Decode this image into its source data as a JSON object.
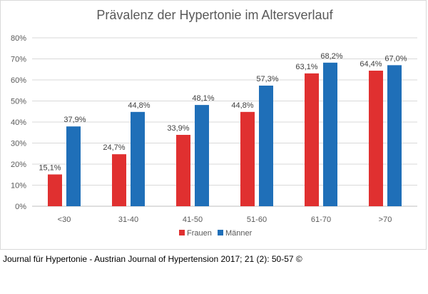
{
  "chart_data": {
    "type": "bar",
    "title": "Prävalenz der Hypertonie im Altersverlauf",
    "categories": [
      "<30",
      "31-40",
      "41-50",
      "51-60",
      "61-70",
      ">70"
    ],
    "series": [
      {
        "name": "Frauen",
        "color": "#e03030",
        "values": [
          15.1,
          24.7,
          33.9,
          44.8,
          63.1,
          64.4
        ],
        "labels": [
          "15,1%",
          "24,7%",
          "33,9%",
          "44,8%",
          "63,1%",
          "64,4%"
        ]
      },
      {
        "name": "Männer",
        "color": "#1f6fb8",
        "values": [
          37.9,
          44.8,
          48.1,
          57.3,
          68.2,
          67.0
        ],
        "labels": [
          "37,9%",
          "44,8%",
          "48,1%",
          "57,3%",
          "68,2%",
          "67,0%"
        ]
      }
    ],
    "ylim": [
      0,
      80
    ],
    "yticks": [
      "0%",
      "10%",
      "20%",
      "30%",
      "40%",
      "50%",
      "60%",
      "70%",
      "80%"
    ],
    "grid": true,
    "legend_position": "bottom"
  },
  "caption": "Journal für Hypertonie - Austrian Journal of Hypertension 2017; 21 (2): 50-57 ©"
}
